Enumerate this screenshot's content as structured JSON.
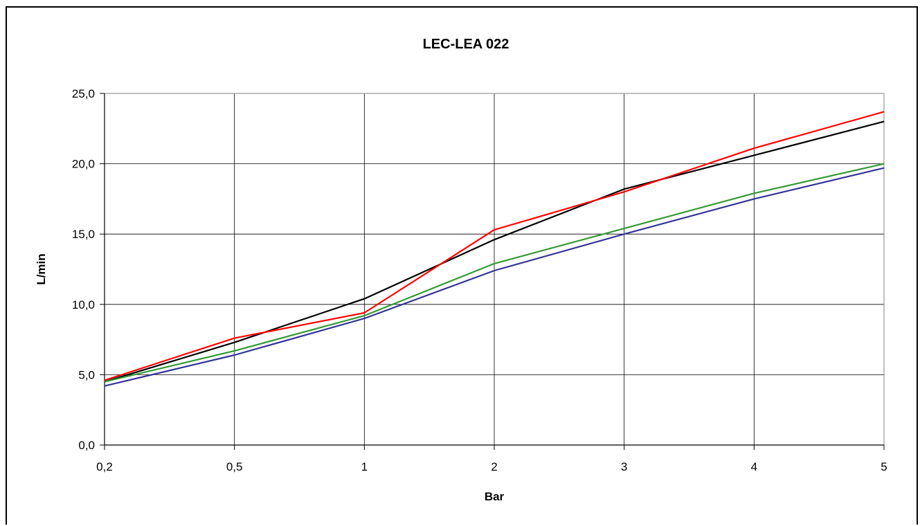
{
  "chart_data": {
    "type": "line",
    "title": "LEC-LEA 022",
    "xlabel": "Bar",
    "ylabel": "L/min",
    "categories": [
      "0,2",
      "0,5",
      "1",
      "2",
      "3",
      "4",
      "5"
    ],
    "y_ticks": [
      "0,0",
      "5,0",
      "10,0",
      "15,0",
      "20,0",
      "25,0"
    ],
    "ylim": [
      0,
      25
    ],
    "grid": true,
    "legend": "none",
    "series": [
      {
        "color": "#000000",
        "values": [
          4.5,
          7.3,
          10.4,
          14.6,
          18.2,
          20.6,
          23.0
        ]
      },
      {
        "color": "#ff0000",
        "values": [
          4.6,
          7.6,
          9.4,
          15.3,
          18.0,
          21.1,
          23.7
        ]
      },
      {
        "color": "#339933",
        "values": [
          4.5,
          6.7,
          9.2,
          12.9,
          15.4,
          17.9,
          20.0
        ]
      },
      {
        "color": "#333399",
        "values": [
          4.2,
          6.4,
          9.0,
          12.4,
          15.0,
          17.5,
          19.7
        ]
      }
    ]
  }
}
